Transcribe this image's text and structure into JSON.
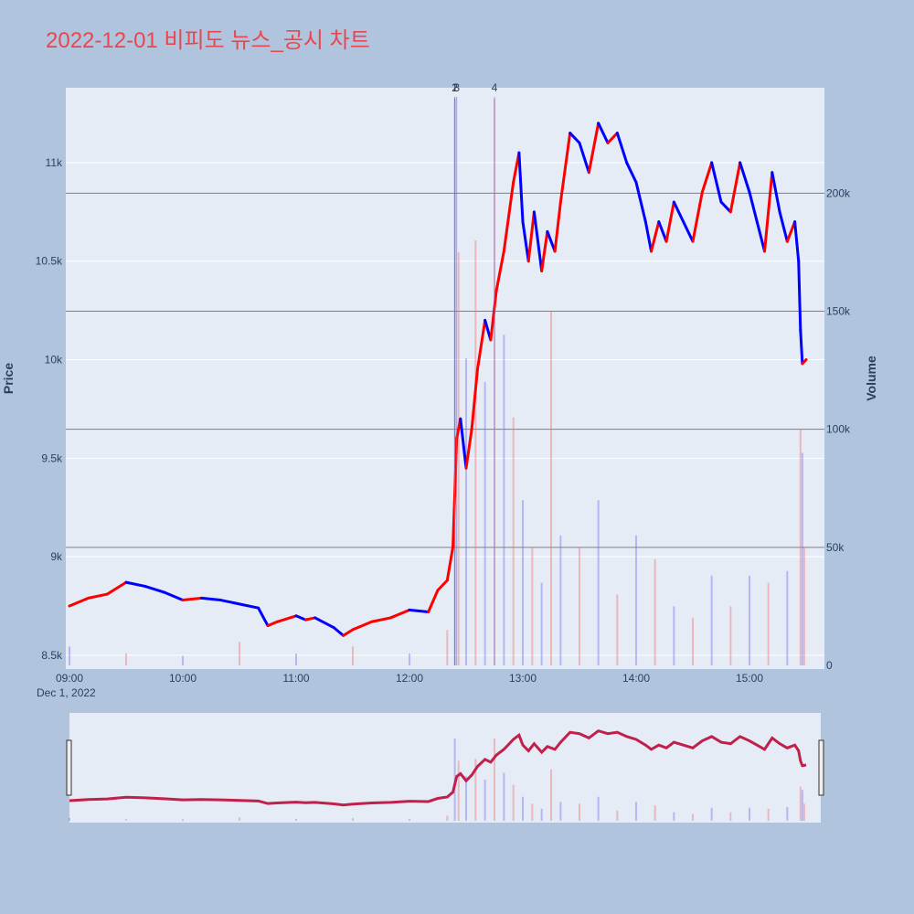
{
  "title": "2022-12-01 비피도 뉴스_공시 차트",
  "chart_data": {
    "type": "candlestick",
    "title": "2022-12-01 비피도 뉴스_공시 차트",
    "date_label": "Dec 1, 2022",
    "x_ticks": [
      "09:00",
      "10:00",
      "11:00",
      "12:00",
      "13:00",
      "14:00",
      "15:00"
    ],
    "x_range": [
      "09:00",
      "15:30"
    ],
    "price_axis": {
      "label": "Price",
      "range": [
        8430,
        11380
      ],
      "ticks": [
        8500,
        9000,
        9500,
        10000,
        10500,
        11000
      ],
      "tick_labels": [
        "8.5k",
        "9k",
        "9.5k",
        "10k",
        "10.5k",
        "11k"
      ]
    },
    "volume_axis": {
      "label": "Volume",
      "range": [
        0,
        240000
      ],
      "ticks": [
        0,
        50000,
        100000,
        150000,
        200000
      ],
      "tick_labels": [
        "0",
        "50k",
        "100k",
        "150k",
        "200k"
      ]
    },
    "annotations": [
      {
        "label": "1",
        "time": "12:24"
      },
      {
        "label": "2",
        "time": "12:24"
      },
      {
        "label": "3",
        "time": "12:25"
      },
      {
        "label": "4",
        "time": "12:45"
      }
    ],
    "price_series": [
      {
        "time": "09:00",
        "price": 8750
      },
      {
        "time": "09:10",
        "price": 8790
      },
      {
        "time": "09:20",
        "price": 8810
      },
      {
        "time": "09:30",
        "price": 8870
      },
      {
        "time": "09:40",
        "price": 8850
      },
      {
        "time": "09:50",
        "price": 8820
      },
      {
        "time": "10:00",
        "price": 8780
      },
      {
        "time": "10:10",
        "price": 8790
      },
      {
        "time": "10:20",
        "price": 8780
      },
      {
        "time": "10:30",
        "price": 8760
      },
      {
        "time": "10:40",
        "price": 8740
      },
      {
        "time": "10:45",
        "price": 8650
      },
      {
        "time": "10:50",
        "price": 8670
      },
      {
        "time": "11:00",
        "price": 8700
      },
      {
        "time": "11:05",
        "price": 8680
      },
      {
        "time": "11:10",
        "price": 8690
      },
      {
        "time": "11:20",
        "price": 8640
      },
      {
        "time": "11:25",
        "price": 8600
      },
      {
        "time": "11:30",
        "price": 8630
      },
      {
        "time": "11:40",
        "price": 8670
      },
      {
        "time": "11:50",
        "price": 8690
      },
      {
        "time": "12:00",
        "price": 8730
      },
      {
        "time": "12:10",
        "price": 8720
      },
      {
        "time": "12:15",
        "price": 8830
      },
      {
        "time": "12:20",
        "price": 8880
      },
      {
        "time": "12:23",
        "price": 9050
      },
      {
        "time": "12:25",
        "price": 9600
      },
      {
        "time": "12:27",
        "price": 9700
      },
      {
        "time": "12:30",
        "price": 9450
      },
      {
        "time": "12:33",
        "price": 9650
      },
      {
        "time": "12:36",
        "price": 9950
      },
      {
        "time": "12:40",
        "price": 10200
      },
      {
        "time": "12:43",
        "price": 10100
      },
      {
        "time": "12:46",
        "price": 10350
      },
      {
        "time": "12:50",
        "price": 10550
      },
      {
        "time": "12:55",
        "price": 10900
      },
      {
        "time": "12:58",
        "price": 11050
      },
      {
        "time": "13:00",
        "price": 10700
      },
      {
        "time": "13:03",
        "price": 10500
      },
      {
        "time": "13:06",
        "price": 10750
      },
      {
        "time": "13:10",
        "price": 10450
      },
      {
        "time": "13:13",
        "price": 10650
      },
      {
        "time": "13:17",
        "price": 10550
      },
      {
        "time": "13:20",
        "price": 10800
      },
      {
        "time": "13:25",
        "price": 11150
      },
      {
        "time": "13:30",
        "price": 11100
      },
      {
        "time": "13:35",
        "price": 10950
      },
      {
        "time": "13:40",
        "price": 11200
      },
      {
        "time": "13:45",
        "price": 11100
      },
      {
        "time": "13:50",
        "price": 11150
      },
      {
        "time": "13:55",
        "price": 11000
      },
      {
        "time": "14:00",
        "price": 10900
      },
      {
        "time": "14:05",
        "price": 10700
      },
      {
        "time": "14:08",
        "price": 10550
      },
      {
        "time": "14:12",
        "price": 10700
      },
      {
        "time": "14:16",
        "price": 10600
      },
      {
        "time": "14:20",
        "price": 10800
      },
      {
        "time": "14:25",
        "price": 10700
      },
      {
        "time": "14:30",
        "price": 10600
      },
      {
        "time": "14:35",
        "price": 10850
      },
      {
        "time": "14:40",
        "price": 11000
      },
      {
        "time": "14:45",
        "price": 10800
      },
      {
        "time": "14:50",
        "price": 10750
      },
      {
        "time": "14:55",
        "price": 11000
      },
      {
        "time": "15:00",
        "price": 10850
      },
      {
        "time": "15:04",
        "price": 10700
      },
      {
        "time": "15:08",
        "price": 10550
      },
      {
        "time": "15:12",
        "price": 10950
      },
      {
        "time": "15:16",
        "price": 10750
      },
      {
        "time": "15:20",
        "price": 10600
      },
      {
        "time": "15:24",
        "price": 10700
      },
      {
        "time": "15:26",
        "price": 10500
      },
      {
        "time": "15:27",
        "price": 10150
      },
      {
        "time": "15:28",
        "price": 9980
      },
      {
        "time": "15:30",
        "price": 10000
      }
    ],
    "volume_series": [
      {
        "time": "09:00",
        "volume": 8000
      },
      {
        "time": "09:30",
        "volume": 5000
      },
      {
        "time": "10:00",
        "volume": 4000
      },
      {
        "time": "10:30",
        "volume": 10000
      },
      {
        "time": "11:00",
        "volume": 5000
      },
      {
        "time": "11:30",
        "volume": 8000
      },
      {
        "time": "12:00",
        "volume": 5000
      },
      {
        "time": "12:20",
        "volume": 15000
      },
      {
        "time": "12:24",
        "volume": 240000
      },
      {
        "time": "12:26",
        "volume": 175000
      },
      {
        "time": "12:30",
        "volume": 130000
      },
      {
        "time": "12:35",
        "volume": 180000
      },
      {
        "time": "12:40",
        "volume": 120000
      },
      {
        "time": "12:45",
        "volume": 240000
      },
      {
        "time": "12:50",
        "volume": 140000
      },
      {
        "time": "12:55",
        "volume": 105000
      },
      {
        "time": "13:00",
        "volume": 70000
      },
      {
        "time": "13:05",
        "volume": 50000
      },
      {
        "time": "13:10",
        "volume": 35000
      },
      {
        "time": "13:15",
        "volume": 150000
      },
      {
        "time": "13:20",
        "volume": 55000
      },
      {
        "time": "13:30",
        "volume": 50000
      },
      {
        "time": "13:40",
        "volume": 70000
      },
      {
        "time": "13:50",
        "volume": 30000
      },
      {
        "time": "14:00",
        "volume": 55000
      },
      {
        "time": "14:10",
        "volume": 45000
      },
      {
        "time": "14:20",
        "volume": 25000
      },
      {
        "time": "14:30",
        "volume": 20000
      },
      {
        "time": "14:40",
        "volume": 38000
      },
      {
        "time": "14:50",
        "volume": 25000
      },
      {
        "time": "15:00",
        "volume": 38000
      },
      {
        "time": "15:10",
        "volume": 35000
      },
      {
        "time": "15:20",
        "volume": 40000
      },
      {
        "time": "15:27",
        "volume": 100000
      },
      {
        "time": "15:28",
        "volume": 90000
      },
      {
        "time": "15:29",
        "volume": 50000
      }
    ]
  }
}
